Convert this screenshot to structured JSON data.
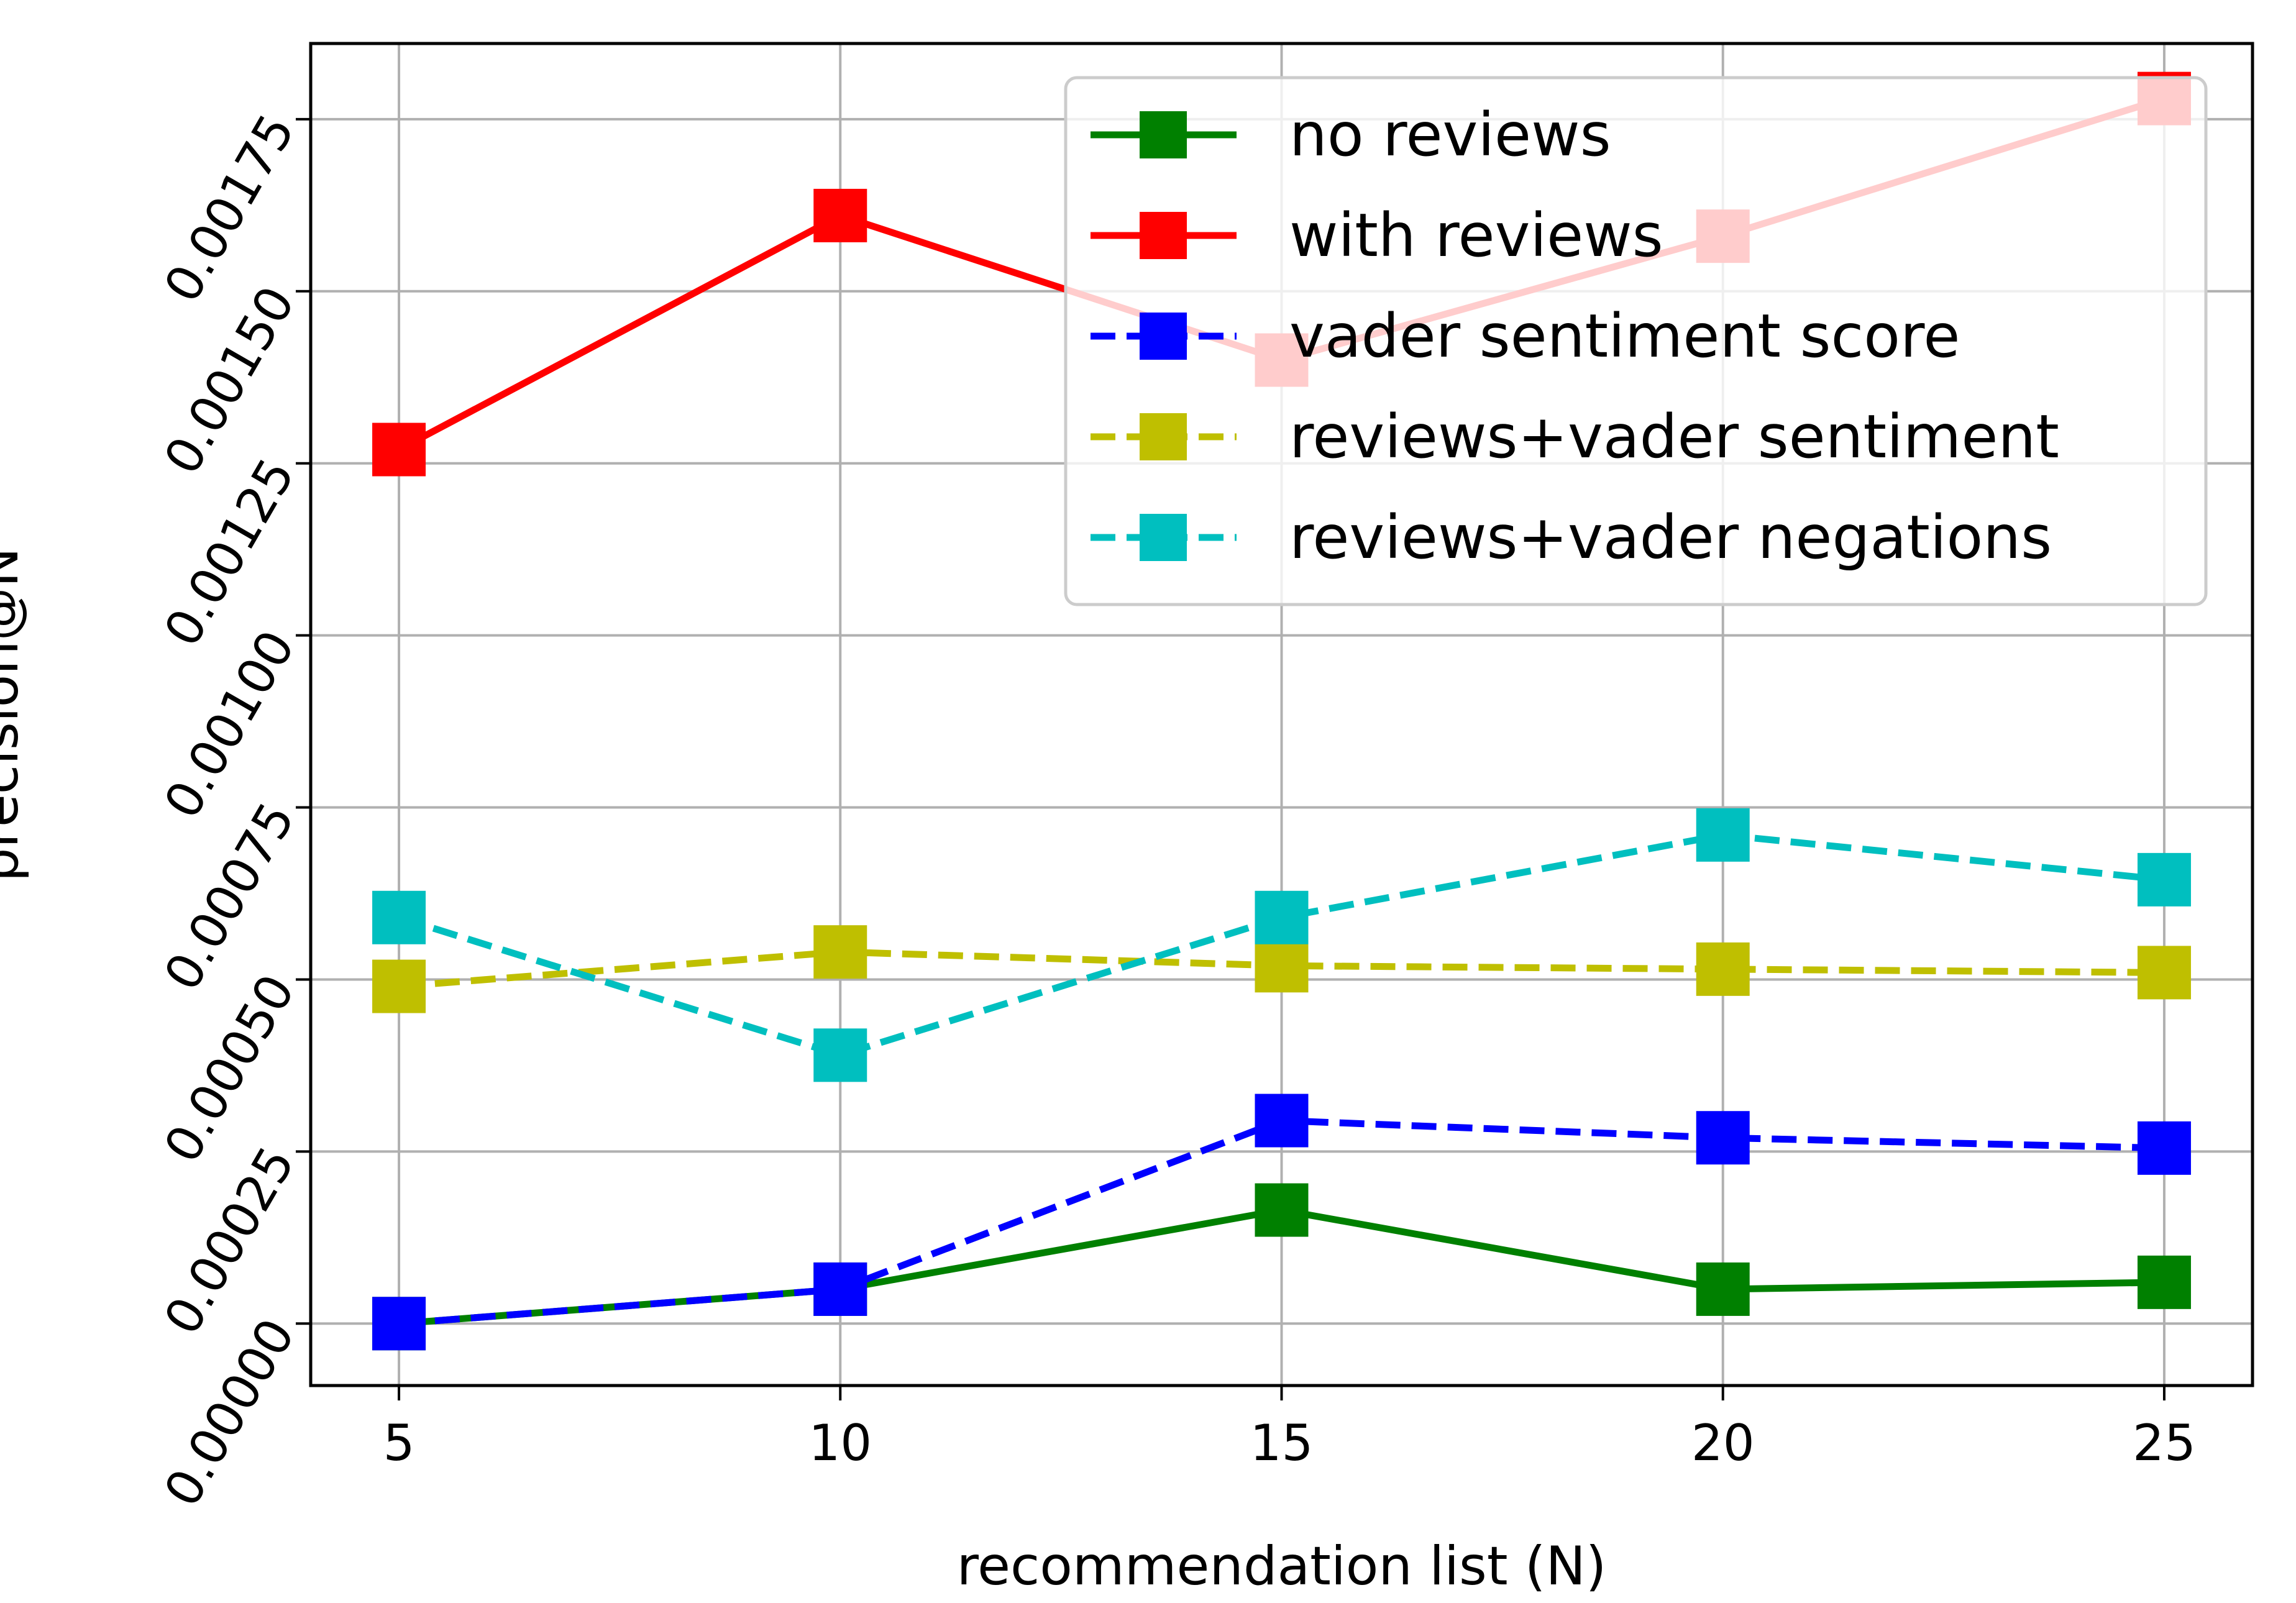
{
  "chart_data": {
    "type": "line",
    "title": "",
    "xlabel": "recommendation list (N)",
    "ylabel": "precision@N",
    "x": [
      5,
      10,
      15,
      20,
      25
    ],
    "xticks": [
      "5",
      "10",
      "15",
      "20",
      "25"
    ],
    "xlim": [
      4,
      26
    ],
    "ylim": [
      -9e-05,
      0.00186
    ],
    "yticks": [
      "0.00000",
      "0.00025",
      "0.00050",
      "0.00075",
      "0.00100",
      "0.00125",
      "0.00150",
      "0.00175"
    ],
    "ytick_values": [
      0,
      0.00025,
      0.0005,
      0.00075,
      0.001,
      0.00125,
      0.0015,
      0.00175
    ],
    "grid": true,
    "legend_position": "top-right",
    "series": [
      {
        "name": "no reviews",
        "color": "#008000",
        "dash": "solid",
        "marker": "square",
        "values": [
          0.0,
          5e-05,
          0.000165,
          5e-05,
          6e-05
        ]
      },
      {
        "name": "with reviews",
        "color": "#ff0000",
        "dash": "solid",
        "marker": "square",
        "values": [
          0.00127,
          0.00161,
          0.0014,
          0.00158,
          0.00178
        ]
      },
      {
        "name": "vader sentiment score",
        "color": "#0000ff",
        "dash": "dashed",
        "marker": "square",
        "values": [
          0.0,
          5e-05,
          0.000295,
          0.00027,
          0.000255
        ]
      },
      {
        "name": "reviews+vader sentiment",
        "color": "#bfbf00",
        "dash": "dashed",
        "marker": "square",
        "values": [
          0.00049,
          0.00054,
          0.00052,
          0.000515,
          0.00051
        ]
      },
      {
        "name": "reviews+vader negations",
        "color": "#00bfbf",
        "dash": "dashed",
        "marker": "square",
        "values": [
          0.00059,
          0.00039,
          0.00059,
          0.00071,
          0.000645
        ]
      }
    ]
  }
}
